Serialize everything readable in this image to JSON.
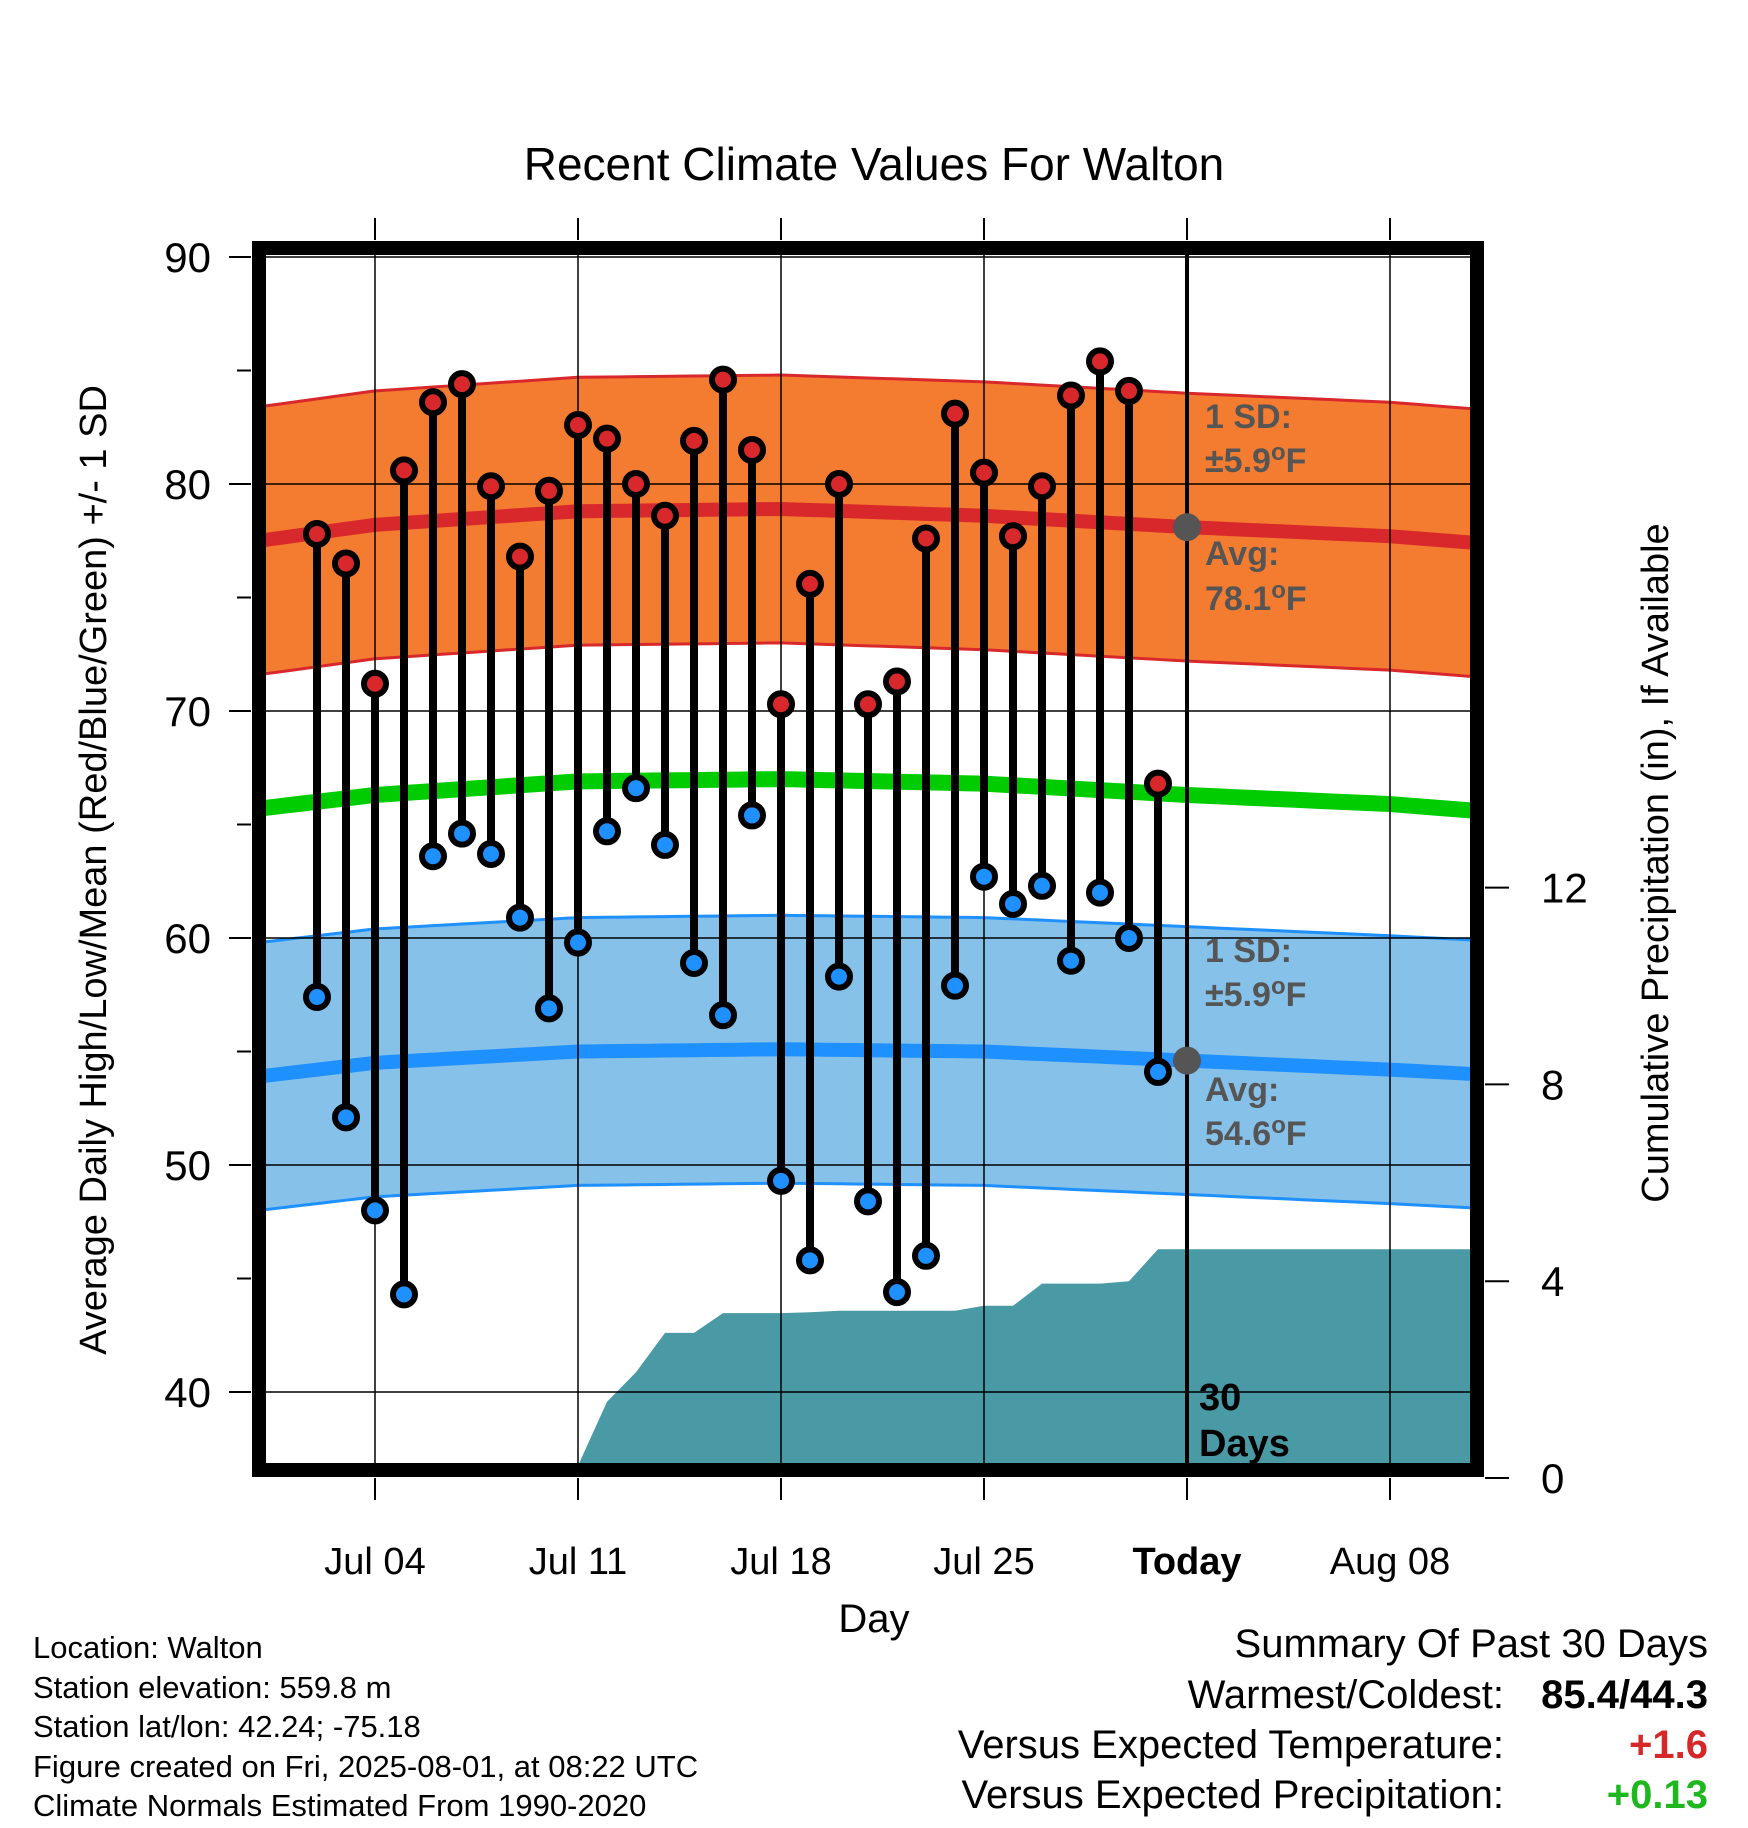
{
  "chart_data": {
    "type": "line",
    "title": "Recent Climate Values For Walton",
    "xlabel": "Day",
    "ylabel": "Average Daily High/Low/Mean (Red/Blue/Green) +/- 1 SD",
    "y2label": "Cumulative Precipitation (in), If Available",
    "ylim": [
      36,
      90
    ],
    "y2lim": [
      0,
      20
    ],
    "yticks": [
      40,
      50,
      60,
      70,
      80,
      90
    ],
    "y2ticks": [
      0,
      4,
      8,
      12
    ],
    "xlim": [
      "2025-06-30",
      "2025-08-11"
    ],
    "xticks": [
      {
        "date": "2025-07-04",
        "label": "Jul 04"
      },
      {
        "date": "2025-07-11",
        "label": "Jul 11"
      },
      {
        "date": "2025-07-18",
        "label": "Jul 18"
      },
      {
        "date": "2025-07-25",
        "label": "Jul 25"
      },
      {
        "date": "2025-08-01",
        "label": "Today"
      },
      {
        "date": "2025-08-08",
        "label": "Aug 08"
      }
    ],
    "grid": true,
    "today_marker": {
      "date": "2025-08-01",
      "label": "30 Days"
    },
    "normals": {
      "dates": [
        "2025-06-30",
        "2025-07-04",
        "2025-07-11",
        "2025-07-18",
        "2025-07-25",
        "2025-08-01",
        "2025-08-08",
        "2025-08-11"
      ],
      "high_mean": [
        77.5,
        78.2,
        78.8,
        78.9,
        78.6,
        78.1,
        77.7,
        77.4
      ],
      "low_mean": [
        53.9,
        54.5,
        55.0,
        55.1,
        55.0,
        54.6,
        54.2,
        54.0
      ],
      "daily_mean": [
        65.7,
        66.3,
        66.9,
        67.0,
        66.8,
        66.3,
        65.9,
        65.6
      ],
      "high_sd": 5.9,
      "low_sd": 5.9,
      "high_avg_label": "Avg:",
      "high_avg_value": "78.1°F",
      "high_sd_label": "1 SD:",
      "high_sd_value": "±5.9°F",
      "low_avg_label": "Avg:",
      "low_avg_value": "54.6°F",
      "low_sd_label": "1 SD:",
      "low_sd_value": "±5.9°F"
    },
    "series": [
      {
        "name": "High",
        "x": [
          "2025-07-02",
          "2025-07-03",
          "2025-07-04",
          "2025-07-05",
          "2025-07-06",
          "2025-07-07",
          "2025-07-08",
          "2025-07-09",
          "2025-07-10",
          "2025-07-11",
          "2025-07-12",
          "2025-07-13",
          "2025-07-14",
          "2025-07-15",
          "2025-07-16",
          "2025-07-17",
          "2025-07-18",
          "2025-07-19",
          "2025-07-20",
          "2025-07-21",
          "2025-07-22",
          "2025-07-23",
          "2025-07-24",
          "2025-07-25",
          "2025-07-26",
          "2025-07-27",
          "2025-07-28",
          "2025-07-29",
          "2025-07-30",
          "2025-07-31"
        ],
        "values": [
          77.8,
          76.5,
          71.2,
          80.6,
          83.6,
          84.4,
          79.9,
          76.8,
          79.7,
          82.6,
          82.0,
          80.0,
          78.6,
          81.9,
          84.6,
          81.5,
          70.3,
          75.6,
          80.0,
          70.3,
          71.3,
          77.6,
          83.1,
          80.5,
          77.7,
          79.9,
          83.9,
          85.4,
          84.1,
          66.8
        ]
      },
      {
        "name": "Low",
        "x": [
          "2025-07-02",
          "2025-07-03",
          "2025-07-04",
          "2025-07-05",
          "2025-07-06",
          "2025-07-07",
          "2025-07-08",
          "2025-07-09",
          "2025-07-10",
          "2025-07-11",
          "2025-07-12",
          "2025-07-13",
          "2025-07-14",
          "2025-07-15",
          "2025-07-16",
          "2025-07-17",
          "2025-07-18",
          "2025-07-19",
          "2025-07-20",
          "2025-07-21",
          "2025-07-22",
          "2025-07-23",
          "2025-07-24",
          "2025-07-25",
          "2025-07-26",
          "2025-07-27",
          "2025-07-28",
          "2025-07-29",
          "2025-07-30",
          "2025-07-31"
        ],
        "values": [
          57.4,
          52.1,
          48.0,
          44.3,
          63.6,
          64.6,
          63.7,
          60.9,
          56.9,
          59.8,
          64.7,
          66.6,
          64.1,
          58.9,
          56.6,
          65.4,
          49.3,
          45.8,
          58.3,
          48.4,
          44.4,
          46.0,
          57.9,
          62.7,
          61.5,
          62.3,
          59.0,
          62.0,
          60.0,
          54.1
        ]
      },
      {
        "name": "Cumulative Precipitation",
        "x": [
          "2025-07-10",
          "2025-07-10.5",
          "2025-07-11",
          "2025-07-12",
          "2025-07-13",
          "2025-07-14",
          "2025-07-15",
          "2025-07-16",
          "2025-07-17",
          "2025-07-18",
          "2025-07-19",
          "2025-07-20",
          "2025-07-21",
          "2025-07-22",
          "2025-07-23",
          "2025-07-24",
          "2025-07-25",
          "2025-07-26",
          "2025-07-27",
          "2025-07-28",
          "2025-07-29",
          "2025-07-30",
          "2025-07-31",
          "2025-08-01",
          "2025-08-11"
        ],
        "values": [
          0.0,
          0.25,
          0.25,
          1.55,
          2.15,
          2.95,
          2.95,
          3.35,
          3.35,
          3.35,
          3.37,
          3.4,
          3.4,
          3.4,
          3.4,
          3.4,
          3.5,
          3.5,
          3.95,
          3.95,
          3.95,
          4.0,
          4.65,
          4.65,
          4.65
        ]
      }
    ]
  },
  "footer": {
    "location": "Location: Walton",
    "elevation": "Station elevation: 559.8 m",
    "latlon": "Station lat/lon: 42.24; -75.18",
    "created": "Figure created on Fri, 2025-08-01, at 08:22 UTC",
    "normals": "Climate Normals Estimated From 1990-2020"
  },
  "summary": {
    "title": "Summary Of Past 30 Days",
    "warmest_label": "Warmest/Coldest:",
    "warmest_value": "85.4/44.3",
    "temp_label": "Versus Expected Temperature:",
    "temp_value": "+1.6",
    "precip_label": "Versus Expected Precipitation:",
    "precip_value": "+0.13",
    "colors": {
      "temp": "#d62828",
      "precip": "#1fb71f"
    }
  },
  "colors": {
    "high_band": "#f47c30",
    "high_line": "#d8282b",
    "low_band": "#85c1e9",
    "low_line": "#1e90ff",
    "mean_line": "#00cc00",
    "precip": "#4a9aa5",
    "high_marker": "#d8282b",
    "low_marker": "#1e90ff",
    "avg_marker": "#555555",
    "annotation": "#555555"
  }
}
